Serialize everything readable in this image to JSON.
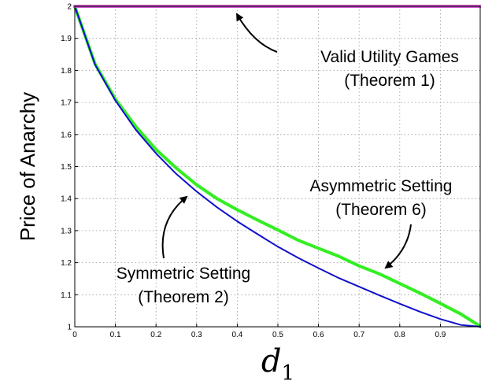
{
  "chart_data": {
    "type": "line",
    "xlabel": "d",
    "xlabel_subscript": "1",
    "ylabel": "Price of Anarchy",
    "xlim": [
      0,
      1
    ],
    "ylim": [
      1,
      2
    ],
    "grid": true,
    "x_ticks": [
      "0",
      "0.1",
      "0.2",
      "0.3",
      "0.4",
      "0.5",
      "0.6",
      "0.7",
      "0.8",
      "0.9"
    ],
    "y_ticks": [
      "1",
      "1.1",
      "1.2",
      "1.3",
      "1.4",
      "1.5",
      "1.6",
      "1.7",
      "1.8",
      "1.9",
      "2"
    ],
    "x": [
      0,
      0.05,
      0.1,
      0.15,
      0.2,
      0.25,
      0.3,
      0.35,
      0.4,
      0.45,
      0.5,
      0.55,
      0.6,
      0.65,
      0.7,
      0.75,
      0.8,
      0.85,
      0.9,
      0.95,
      1.0
    ],
    "series": [
      {
        "id": "valid-utility",
        "color": "#cc55cc",
        "values": [
          2,
          2,
          2,
          2,
          2,
          2,
          2,
          2,
          2,
          2,
          2,
          2,
          2,
          2,
          2,
          2,
          2,
          2,
          2,
          2,
          2
        ]
      },
      {
        "id": "symmetric",
        "color": "#1010cc",
        "values": [
          2.0,
          1.818,
          1.706,
          1.615,
          1.541,
          1.477,
          1.422,
          1.373,
          1.329,
          1.289,
          1.25,
          1.215,
          1.183,
          1.152,
          1.125,
          1.098,
          1.072,
          1.047,
          1.024,
          1.006,
          1.0
        ]
      },
      {
        "id": "asymmetric",
        "color": "#33ee22",
        "values": [
          2.0,
          1.82,
          1.71,
          1.625,
          1.553,
          1.495,
          1.443,
          1.4,
          1.365,
          1.333,
          1.302,
          1.27,
          1.245,
          1.22,
          1.19,
          1.165,
          1.135,
          1.105,
          1.073,
          1.04,
          1.0
        ]
      }
    ],
    "annotations": [
      {
        "id": "valid-utility",
        "lines": [
          "Valid Utility Games",
          "(Theorem 1)"
        ]
      },
      {
        "id": "asymmetric",
        "lines": [
          "Asymmetric Setting",
          "(Theorem 6)"
        ]
      },
      {
        "id": "symmetric",
        "lines": [
          "Symmetric Setting",
          "(Theorem 2)"
        ]
      }
    ]
  }
}
